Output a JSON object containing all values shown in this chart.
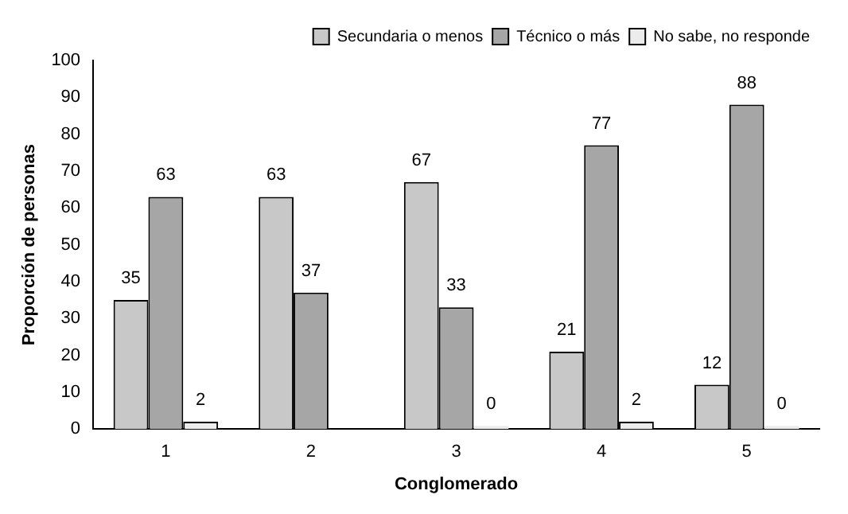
{
  "chart_data": {
    "type": "bar",
    "xlabel": "Conglomerado",
    "ylabel": "Proporción de personas",
    "categories": [
      "1",
      "2",
      "3",
      "4",
      "5"
    ],
    "series": [
      {
        "name": "Secundaria o menos",
        "color": "#c8c8c8",
        "values": [
          35,
          63,
          67,
          21,
          12
        ],
        "value_labels": [
          "35",
          "63",
          "67",
          "21",
          "12"
        ]
      },
      {
        "name": "Técnico o más",
        "color": "#a6a6a6",
        "values": [
          63,
          37,
          33,
          77,
          88
        ],
        "value_labels": [
          "63",
          "37",
          "33",
          "77",
          "88"
        ]
      },
      {
        "name": "No sabe, no responde",
        "color": "#ececec",
        "values": [
          2,
          null,
          0,
          2,
          0
        ],
        "value_labels": [
          "2",
          null,
          "0",
          "2",
          "0"
        ]
      }
    ],
    "ylim": [
      0,
      100
    ],
    "yticks": [
      0,
      10,
      20,
      30,
      40,
      50,
      60,
      70,
      80,
      90,
      100
    ],
    "grid": false,
    "legend": "top right"
  }
}
